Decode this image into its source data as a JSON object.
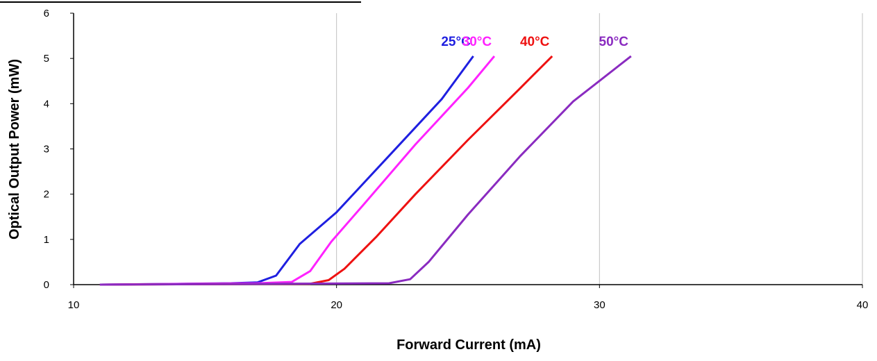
{
  "chart_data": {
    "type": "line",
    "title": "",
    "xlabel": "Forward Current (mA)",
    "ylabel": "Optical Output Power (mW)",
    "xlim": [
      10,
      40
    ],
    "ylim": [
      0,
      6
    ],
    "x_ticks": [
      "10",
      "20",
      "30",
      "40"
    ],
    "y_ticks": [
      "0",
      "1",
      "2",
      "3",
      "4",
      "5",
      "6"
    ],
    "grid": "vertical",
    "legend": "labels above line ends",
    "series": [
      {
        "name": "25°C",
        "color": "#1f1fe0",
        "points": [
          [
            11,
            0
          ],
          [
            16,
            0.03
          ],
          [
            17,
            0.05
          ],
          [
            17.7,
            0.2
          ],
          [
            18.6,
            0.9
          ],
          [
            20,
            1.6
          ],
          [
            22,
            2.85
          ],
          [
            24,
            4.1
          ],
          [
            25.2,
            5.05
          ]
        ]
      },
      {
        "name": "30°C",
        "color": "#ff22ff",
        "points": [
          [
            11,
            0
          ],
          [
            17,
            0.03
          ],
          [
            18.3,
            0.06
          ],
          [
            19,
            0.3
          ],
          [
            19.8,
            0.95
          ],
          [
            21,
            1.75
          ],
          [
            23,
            3.1
          ],
          [
            25,
            4.35
          ],
          [
            26,
            5.05
          ]
        ]
      },
      {
        "name": "40°C",
        "color": "#ee1111",
        "points": [
          [
            11,
            0
          ],
          [
            19,
            0.02
          ],
          [
            19.7,
            0.1
          ],
          [
            20.3,
            0.35
          ],
          [
            21.5,
            1.05
          ],
          [
            23,
            2.0
          ],
          [
            25,
            3.2
          ],
          [
            27,
            4.35
          ],
          [
            28.2,
            5.05
          ]
        ]
      },
      {
        "name": "50°C",
        "color": "#8a2bc0",
        "points": [
          [
            11,
            0
          ],
          [
            22,
            0.03
          ],
          [
            22.8,
            0.12
          ],
          [
            23.5,
            0.5
          ],
          [
            25,
            1.55
          ],
          [
            27,
            2.85
          ],
          [
            29,
            4.05
          ],
          [
            31.2,
            5.05
          ]
        ]
      }
    ]
  }
}
